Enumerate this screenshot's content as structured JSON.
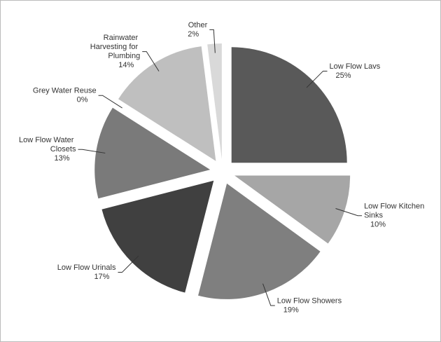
{
  "chart_data": {
    "type": "pie",
    "categories": [
      "Low Flow Lavs",
      "Low Flow Kitchen Sinks",
      "Low Flow Showers",
      "Low Flow Urinals",
      "Low Flow Water Closets",
      "Grey Water Reuse",
      "Rainwater Harvesting for Plumbing",
      "Other"
    ],
    "values": [
      25,
      10,
      19,
      17,
      13,
      0,
      14,
      2
    ],
    "value_labels": [
      "25%",
      "10%",
      "19%",
      "17%",
      "13%",
      "0%",
      "14%",
      "2%"
    ],
    "colors": [
      "#595959",
      "#a6a6a6",
      "#7f7f7f",
      "#404040",
      "#7a7a7a",
      "#999999",
      "#bfbfbf",
      "#d9d9d9"
    ]
  }
}
